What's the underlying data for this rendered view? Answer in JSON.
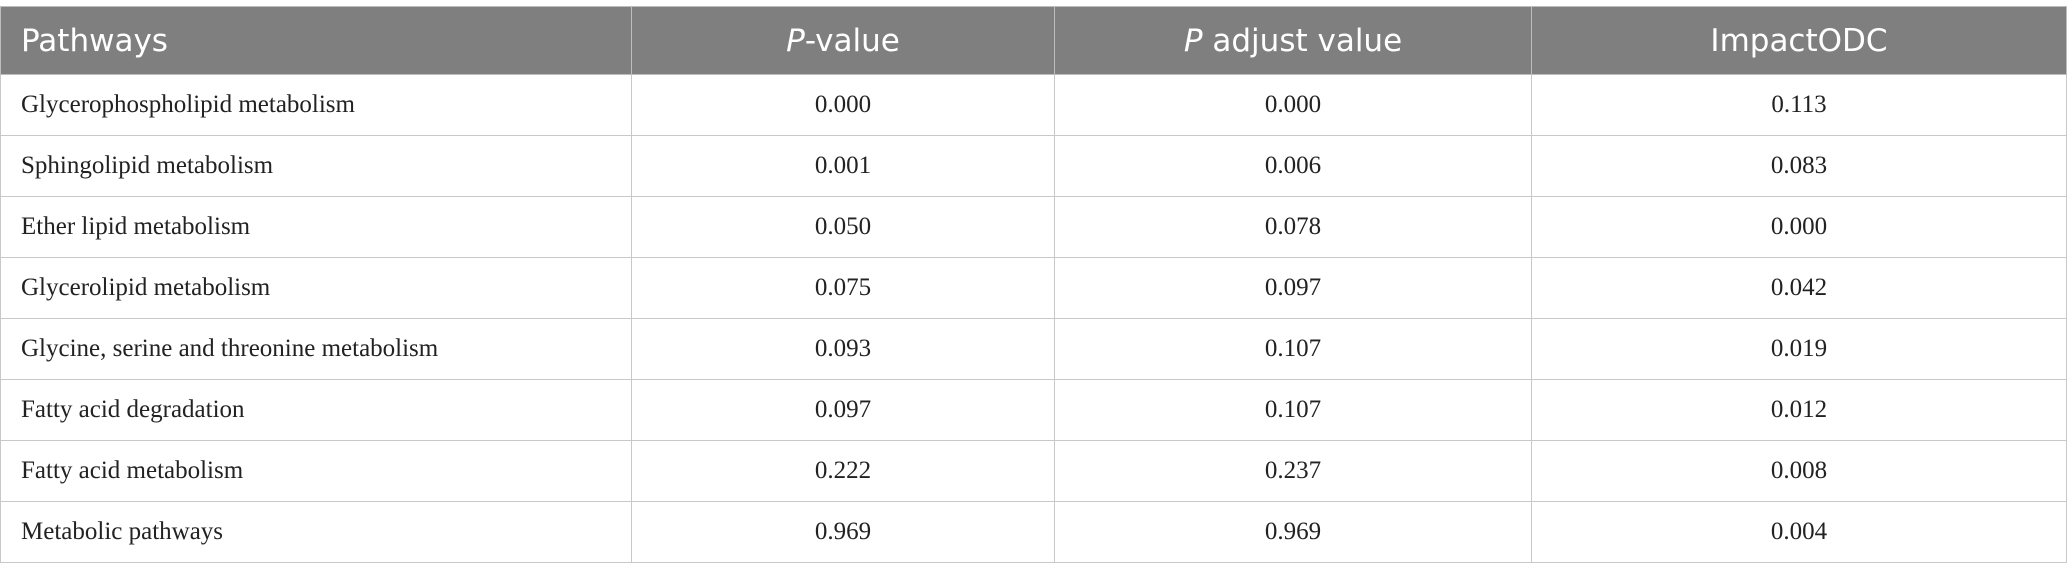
{
  "table": {
    "header": [
      "Pathways",
      [
        "P",
        "-value"
      ],
      [
        "P",
        " adjust value"
      ],
      "ImpactODC"
    ],
    "rows": [
      [
        "Glycerophospholipid metabolism",
        "0.000",
        "0.000",
        "0.113"
      ],
      [
        "Sphingolipid metabolism",
        "0.001",
        "0.006",
        "0.083"
      ],
      [
        "Ether lipid metabolism",
        "0.050",
        "0.078",
        "0.000"
      ],
      [
        "Glycerolipid metabolism",
        "0.075",
        "0.097",
        "0.042"
      ],
      [
        "Glycine, serine and threonine metabolism",
        "0.093",
        "0.107",
        "0.019"
      ],
      [
        "Fatty acid degradation",
        "0.097",
        "0.107",
        "0.012"
      ],
      [
        "Fatty acid metabolism",
        "0.222",
        "0.237",
        "0.008"
      ],
      [
        "Metabolic pathways",
        "0.969",
        "0.969",
        "0.004"
      ]
    ]
  }
}
